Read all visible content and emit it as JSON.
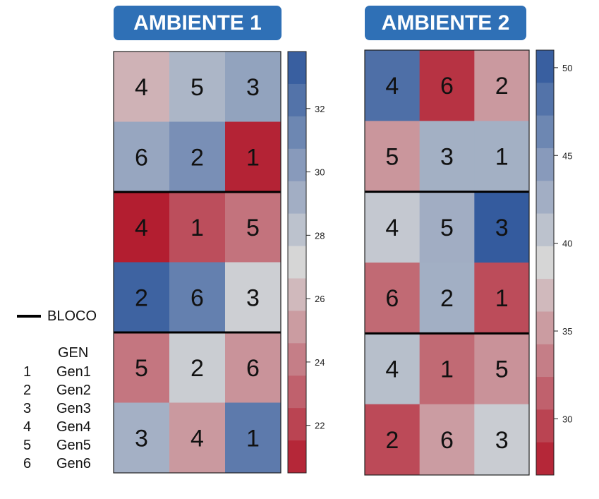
{
  "chart_data": [
    {
      "type": "heatmap",
      "title": "AMBIENTE 1",
      "rows": [
        [
          {
            "gen": "4",
            "value": 25.9
          },
          {
            "gen": "5",
            "value": 28.8
          },
          {
            "gen": "3",
            "value": 29.8
          }
        ],
        [
          {
            "gen": "6",
            "value": 29.6
          },
          {
            "gen": "2",
            "value": 30.8
          },
          {
            "gen": "1",
            "value": 20.9
          }
        ],
        [
          {
            "gen": "4",
            "value": 20.7
          },
          {
            "gen": "1",
            "value": 22.4
          },
          {
            "gen": "5",
            "value": 23.7
          }
        ],
        [
          {
            "gen": "2",
            "value": 33.1
          },
          {
            "gen": "6",
            "value": 31.6
          },
          {
            "gen": "3",
            "value": 27.5
          }
        ],
        [
          {
            "gen": "5",
            "value": 23.8
          },
          {
            "gen": "2",
            "value": 27.6
          },
          {
            "gen": "6",
            "value": 24.8
          }
        ],
        [
          {
            "gen": "3",
            "value": 29.1
          },
          {
            "gen": "4",
            "value": 25.0
          },
          {
            "gen": "1",
            "value": 31.9
          }
        ]
      ],
      "block_boundaries_after_rows": [
        2,
        4
      ],
      "colorbar": {
        "min": 20.5,
        "max": 33.8,
        "ticks": [
          22,
          24,
          26,
          28,
          30,
          32
        ],
        "tick_labels": [
          "22",
          "24",
          "26",
          "28",
          "30",
          "32"
        ]
      }
    },
    {
      "type": "heatmap",
      "title": "AMBIENTE 2",
      "rows": [
        [
          {
            "gen": "4",
            "value": 48.6
          },
          {
            "gen": "6",
            "value": 28.5
          },
          {
            "gen": "2",
            "value": 35.0
          }
        ],
        [
          {
            "gen": "5",
            "value": 34.8
          },
          {
            "gen": "3",
            "value": 42.5
          },
          {
            "gen": "1",
            "value": 42.5
          }
        ],
        [
          {
            "gen": "4",
            "value": 40.2
          },
          {
            "gen": "5",
            "value": 42.7
          },
          {
            "gen": "3",
            "value": 50.4
          }
        ],
        [
          {
            "gen": "6",
            "value": 32.0
          },
          {
            "gen": "2",
            "value": 42.6
          },
          {
            "gen": "1",
            "value": 30.1
          }
        ],
        [
          {
            "gen": "4",
            "value": 41.1
          },
          {
            "gen": "1",
            "value": 32.0
          },
          {
            "gen": "5",
            "value": 34.6
          }
        ],
        [
          {
            "gen": "2",
            "value": 30.0
          },
          {
            "gen": "6",
            "value": 35.2
          },
          {
            "gen": "3",
            "value": 39.8
          }
        ]
      ],
      "block_boundaries_after_rows": [
        2,
        4
      ],
      "colorbar": {
        "min": 26.8,
        "max": 51.0,
        "ticks": [
          30,
          35,
          40,
          45,
          50
        ],
        "tick_labels": [
          "30",
          "35",
          "40",
          "45",
          "50"
        ]
      }
    }
  ],
  "legend": {
    "block_label": "BLOCO",
    "gen_header": "GEN",
    "genotypes": [
      {
        "code": "1",
        "name": "Gen1"
      },
      {
        "code": "2",
        "name": "Gen2"
      },
      {
        "code": "3",
        "name": "Gen3"
      },
      {
        "code": "4",
        "name": "Gen4"
      },
      {
        "code": "5",
        "name": "Gen5"
      },
      {
        "code": "6",
        "name": "Gen6"
      }
    ]
  },
  "colors": {
    "palette": [
      "#b2182b",
      "#d6d6d6",
      "#2c559b"
    ],
    "title_bg": "#2f70b6"
  }
}
